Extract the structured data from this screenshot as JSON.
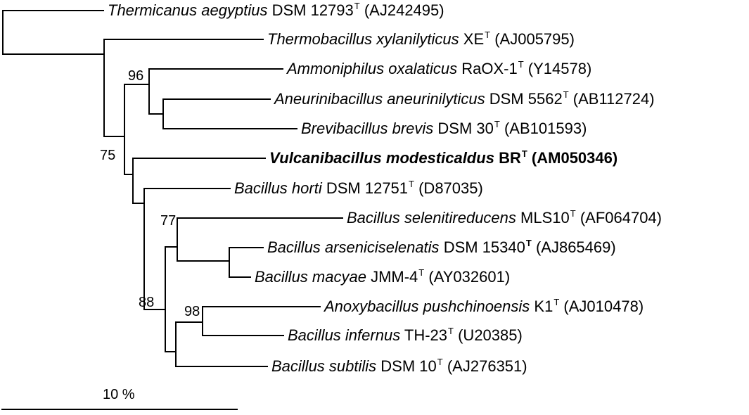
{
  "taxa": [
    {
      "species": "Thermicanus aegyptius",
      "strain": "DSM 12793",
      "type_mark": "T",
      "accession": "(AJ242495)",
      "bold": false
    },
    {
      "species": "Thermobacillus xylanilyticus",
      "strain": "XE",
      "type_mark": "T",
      "accession": "(AJ005795)",
      "bold": false
    },
    {
      "species": "Ammoniphilus oxalaticus",
      "strain": "RaOX-1",
      "type_mark": "T",
      "accession": "(Y14578)",
      "bold": false
    },
    {
      "species": "Aneurinibacillus aneurinilyticus",
      "strain": "DSM 5562",
      "type_mark": "T",
      "accession": "(AB112724)",
      "bold": false
    },
    {
      "species": "Brevibacillus brevis",
      "strain": "DSM 30",
      "type_mark": "T",
      "accession": "(AB101593)",
      "bold": false
    },
    {
      "species": "Vulcanibacillus modesticaldus",
      "strain": "BR",
      "type_mark": "T",
      "accession": "(AM050346)",
      "bold": true
    },
    {
      "species": "Bacillus horti",
      "strain": "DSM 12751",
      "type_mark": "T",
      "accession": "(D87035)",
      "bold": false
    },
    {
      "species": "Bacillus selenitireducens",
      "strain": "MLS10",
      "type_mark": "T",
      "accession": "(AF064704)",
      "bold": false
    },
    {
      "species": "Bacillus arseniciselenatis",
      "strain": "DSM 15340",
      "type_mark": "T",
      "accession": "(AJ865469)",
      "bold": false
    },
    {
      "species": "Bacillus macyae",
      "strain": "JMM-4",
      "type_mark": "T",
      "accession": "(AY032601)",
      "bold": false
    },
    {
      "species": "Anoxybacillus pushchinoensis",
      "strain": "K1",
      "type_mark": "T",
      "accession": "(AJ010478)",
      "bold": false
    },
    {
      "species": "Bacillus infernus",
      "strain": "TH-23",
      "type_mark": "T",
      "accession": "(U20385)",
      "bold": false
    },
    {
      "species": "Bacillus subtilis",
      "strain": "DSM 10",
      "type_mark": "T",
      "accession": "(AJ276351)",
      "bold": false
    }
  ],
  "bootstrap": [
    "96",
    "75",
    "77",
    "88",
    "98"
  ],
  "scale_bar": {
    "label": "10 %"
  }
}
